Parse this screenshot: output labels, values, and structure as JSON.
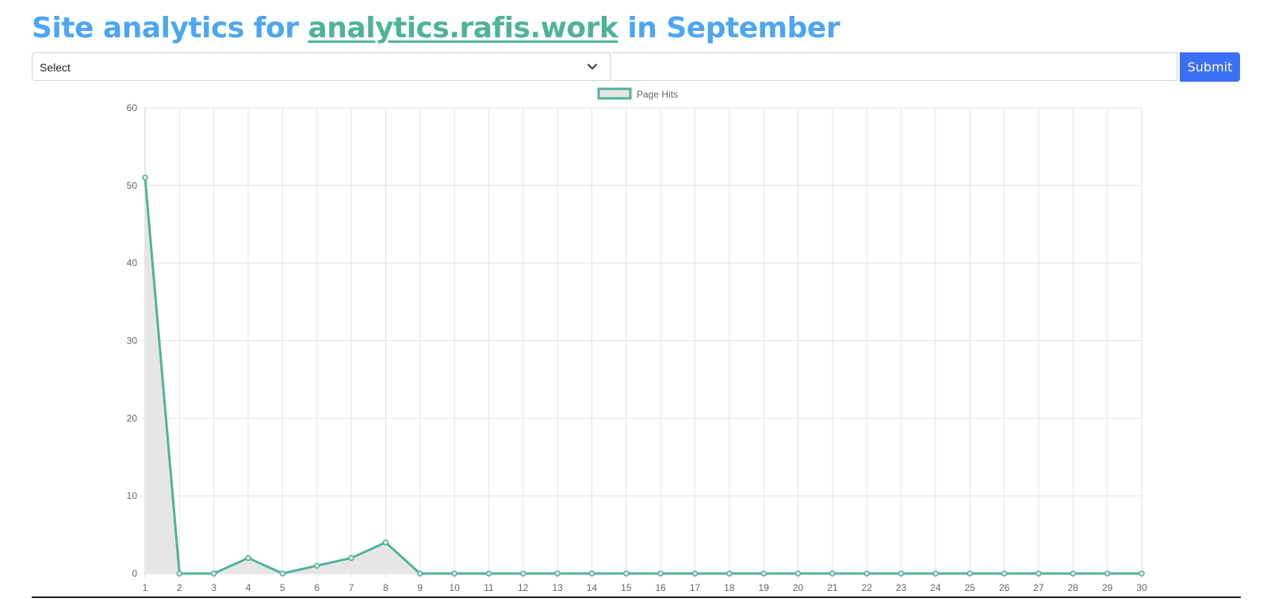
{
  "header": {
    "title_prefix": "Site analytics for ",
    "site_link": "analytics.rafis.work",
    "title_suffix": " in September"
  },
  "form": {
    "select_value": "Select",
    "input_value": "",
    "submit_label": "Submit"
  },
  "colors": {
    "title": "#4da6f0",
    "link": "#4fb39a",
    "line": "#4fb39a",
    "fill": "#e6e6e6",
    "submit": "#3b6ff5"
  },
  "chart_data": {
    "type": "line",
    "title": "",
    "xlabel": "",
    "ylabel": "",
    "legend": "top-center",
    "grid": true,
    "ylim": [
      0,
      60
    ],
    "yticks": [
      0,
      10,
      20,
      30,
      40,
      50,
      60
    ],
    "x": [
      1,
      2,
      3,
      4,
      5,
      6,
      7,
      8,
      9,
      10,
      11,
      12,
      13,
      14,
      15,
      16,
      17,
      18,
      19,
      20,
      21,
      22,
      23,
      24,
      25,
      26,
      27,
      28,
      29,
      30
    ],
    "series": [
      {
        "name": "Page Hits",
        "fill": true,
        "values": [
          51,
          0,
          0,
          2,
          0,
          1,
          2,
          4,
          0,
          0,
          0,
          0,
          0,
          0,
          0,
          0,
          0,
          0,
          0,
          0,
          0,
          0,
          0,
          0,
          0,
          0,
          0,
          0,
          0,
          0
        ]
      }
    ]
  }
}
